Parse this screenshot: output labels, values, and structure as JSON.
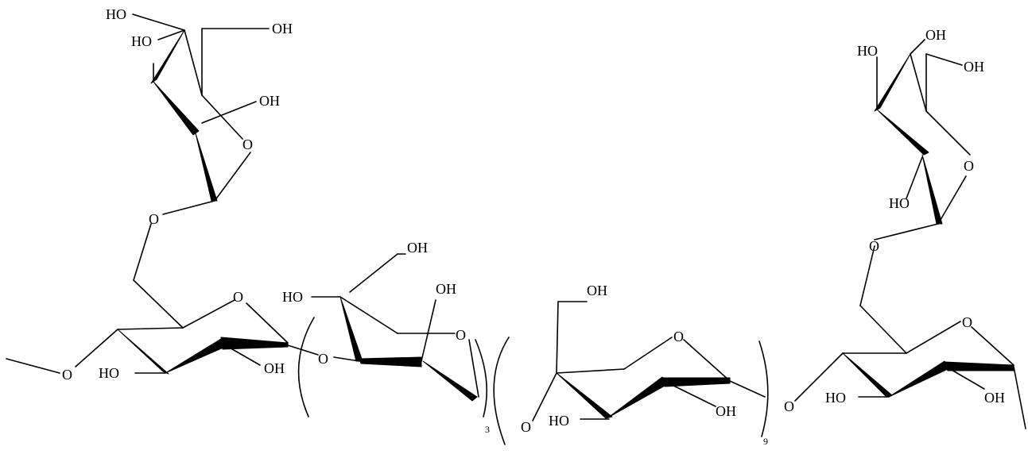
{
  "structure": {
    "labels": {
      "ho": "HO",
      "oh": "OH",
      "o": "O"
    },
    "repeat_units": {
      "first": "3",
      "second": "9"
    },
    "colors": {
      "ink": "#000000",
      "background": "#ffffff"
    }
  }
}
